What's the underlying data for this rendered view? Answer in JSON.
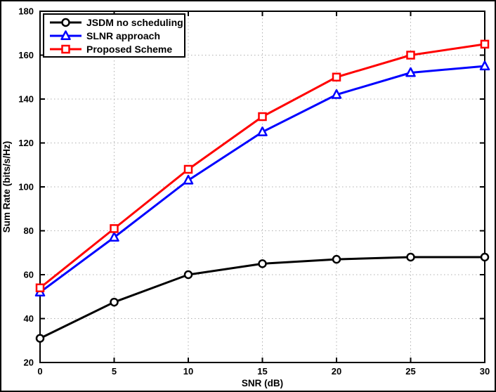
{
  "figure": {
    "background": "#ffffff",
    "border_color": "#000000",
    "frame_color": "#000000"
  },
  "chart_data": {
    "type": "line",
    "title": "",
    "xlabel": "SNR (dB)",
    "ylabel": "Sum Rate (bits/s/Hz)",
    "xlim": [
      0,
      30
    ],
    "ylim": [
      20,
      180
    ],
    "xticks": [
      0,
      5,
      10,
      15,
      20,
      25,
      30
    ],
    "yticks": [
      20,
      40,
      60,
      80,
      100,
      120,
      140,
      160,
      180
    ],
    "grid": "dotted",
    "grid_color": "#b0b0b0",
    "legend_position": "top-left",
    "x": [
      0,
      5,
      10,
      15,
      20,
      25,
      30
    ],
    "series": [
      {
        "name": "JSDM no scheduling",
        "color": "#000000",
        "marker": "circle",
        "values": [
          31,
          47.5,
          60,
          65,
          67,
          68,
          68
        ]
      },
      {
        "name": "SLNR approach",
        "color": "#0000ff",
        "marker": "triangle",
        "values": [
          52,
          77,
          103,
          125,
          142,
          152,
          155
        ]
      },
      {
        "name": "Proposed Scheme",
        "color": "#ff0000",
        "marker": "square",
        "values": [
          54,
          81,
          108,
          132,
          150,
          160,
          165
        ]
      }
    ]
  }
}
